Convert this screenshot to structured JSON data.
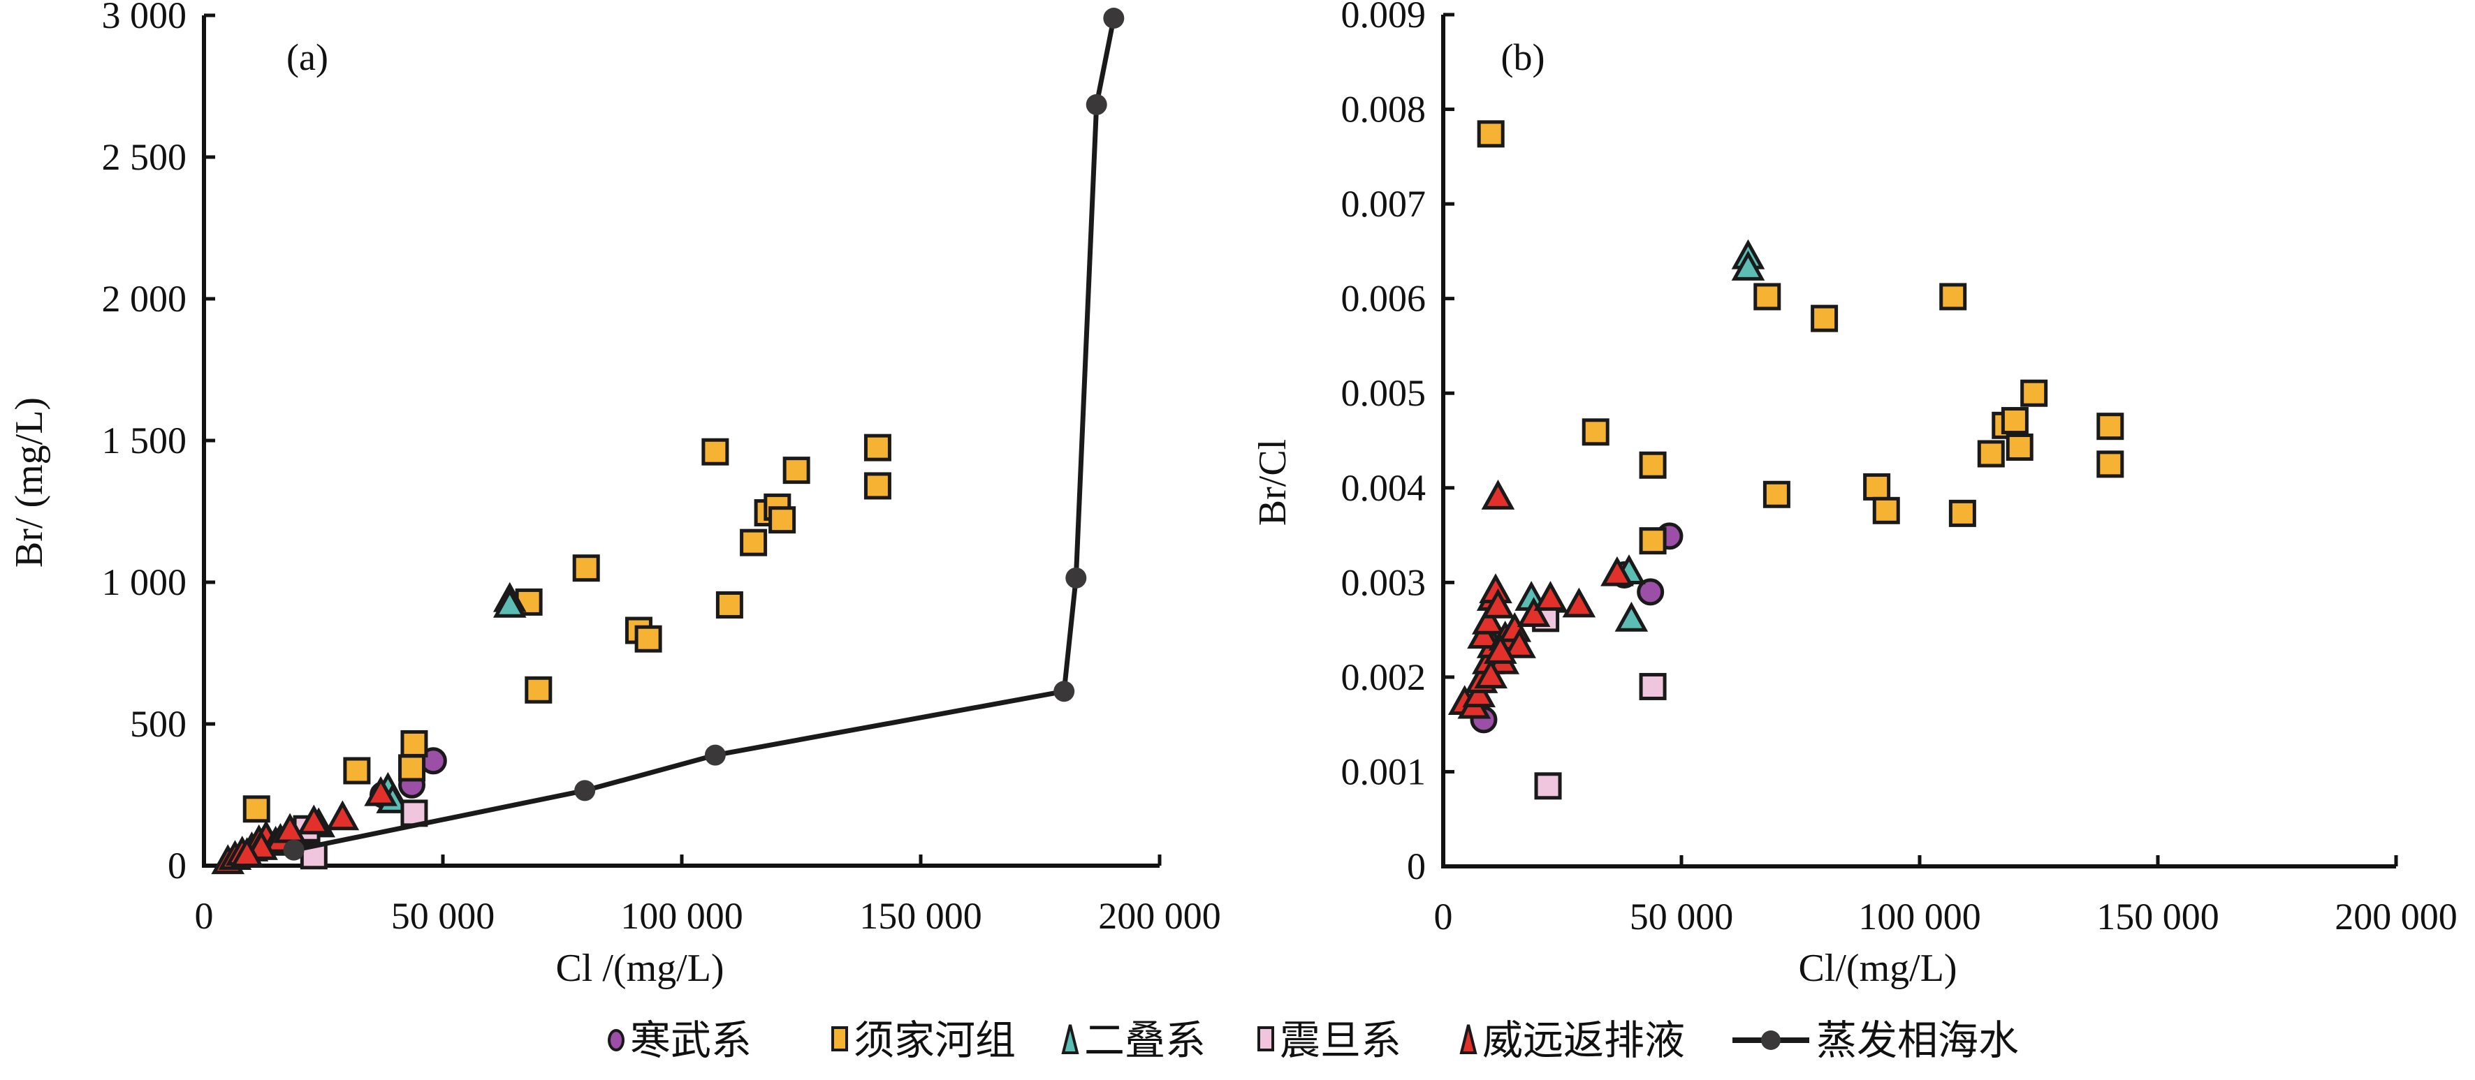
{
  "chart_data": [
    {
      "type": "scatter",
      "panel_label": "(a)",
      "xlabel": "Cl /(mg/L)",
      "ylabel": "Br/ (mg/L)",
      "xlim": [
        0,
        200000
      ],
      "ylim": [
        0,
        3000
      ],
      "xticks": [
        0,
        50000,
        100000,
        150000,
        200000
      ],
      "xtick_labels": [
        "0",
        "50 000",
        "100 000",
        "150 000",
        "200 000"
      ],
      "yticks": [
        0,
        500,
        1000,
        1500,
        2000,
        2500,
        3000
      ],
      "ytick_labels": [
        "0",
        "500",
        "1 000",
        "1 500",
        "2 000",
        "2 500",
        "3 000"
      ],
      "grid": false,
      "series": [
        {
          "name": "寒武系",
          "marker": "circle",
          "points": [
            [
              37500,
              250
            ],
            [
              43500,
              285
            ],
            [
              48000,
              370
            ]
          ]
        },
        {
          "name": "须家河组",
          "marker": "square",
          "points": [
            [
              11000,
              200
            ],
            [
              32000,
              335
            ],
            [
              44000,
              430
            ],
            [
              43500,
              345
            ],
            [
              68000,
              930
            ],
            [
              70000,
              620
            ],
            [
              80000,
              1050
            ],
            [
              91000,
              830
            ],
            [
              93000,
              800
            ],
            [
              107000,
              1460
            ],
            [
              110000,
              920
            ],
            [
              115000,
              1140
            ],
            [
              118000,
              1245
            ],
            [
              120000,
              1265
            ],
            [
              121000,
              1220
            ],
            [
              124000,
              1395
            ],
            [
              141000,
              1475
            ],
            [
              141000,
              1340
            ]
          ]
        },
        {
          "name": "二叠系",
          "marker": "triangle",
          "points": [
            [
              64000,
              935
            ],
            [
              64000,
              915
            ],
            [
              38500,
              265
            ],
            [
              39500,
              225
            ],
            [
              24000,
              140
            ]
          ]
        },
        {
          "name": "震旦系",
          "marker": "square",
          "points": [
            [
              23000,
              35
            ],
            [
              44000,
              185
            ],
            [
              21500,
              130
            ]
          ]
        },
        {
          "name": "威远返排液",
          "marker": "triangle",
          "points": [
            [
              5000,
              10
            ],
            [
              6500,
              25
            ],
            [
              8000,
              40
            ],
            [
              10000,
              55
            ],
            [
              11500,
              80
            ],
            [
              13000,
              95
            ],
            [
              15000,
              75
            ],
            [
              16000,
              85
            ],
            [
              18000,
              120
            ],
            [
              23000,
              150
            ],
            [
              29000,
              165
            ],
            [
              37000,
              250
            ],
            [
              12000,
              60
            ],
            [
              9000,
              35
            ]
          ]
        },
        {
          "name": "蒸发相海水",
          "marker": "line",
          "points": [
            [
              18800,
              55
            ],
            [
              79700,
              265
            ],
            [
              107000,
              390
            ],
            [
              180000,
              615
            ],
            [
              182500,
              1015
            ],
            [
              186800,
              2685
            ],
            [
              190400,
              2990
            ]
          ]
        }
      ]
    },
    {
      "type": "scatter",
      "panel_label": "(b)",
      "xlabel": "Cl/(mg/L)",
      "ylabel": "Br/Cl",
      "xlim": [
        0,
        200000
      ],
      "ylim": [
        0,
        0.009
      ],
      "xticks": [
        0,
        50000,
        100000,
        150000,
        200000
      ],
      "xtick_labels": [
        "0",
        "50 000",
        "100 000",
        "150 000",
        "200 000"
      ],
      "yticks": [
        0,
        0.001,
        0.002,
        0.003,
        0.004,
        0.005,
        0.006,
        0.007,
        0.008,
        0.009
      ],
      "ytick_labels": [
        "0",
        "0.001",
        "0.002",
        "0.003",
        "0.004",
        "0.005",
        "0.006",
        "0.007",
        "0.008",
        "0.009"
      ],
      "grid": false,
      "series": [
        {
          "name": "寒武系",
          "marker": "circle",
          "points": [
            [
              38000,
              0.00308
            ],
            [
              43500,
              0.0029
            ],
            [
              47500,
              0.00349
            ],
            [
              8500,
              0.00155
            ]
          ]
        },
        {
          "name": "须家河组",
          "marker": "square",
          "points": [
            [
              10000,
              0.00774
            ],
            [
              32000,
              0.00459
            ],
            [
              44000,
              0.00424
            ],
            [
              44000,
              0.00344
            ],
            [
              68000,
              0.00602
            ],
            [
              70000,
              0.00393
            ],
            [
              80000,
              0.00579
            ],
            [
              91000,
              0.00401
            ],
            [
              93000,
              0.00376
            ],
            [
              107000,
              0.00602
            ],
            [
              109000,
              0.00373
            ],
            [
              115000,
              0.00436
            ],
            [
              118000,
              0.00466
            ],
            [
              120000,
              0.00471
            ],
            [
              121000,
              0.00443
            ],
            [
              124000,
              0.005
            ],
            [
              140000,
              0.00465
            ],
            [
              140000,
              0.00425
            ]
          ]
        },
        {
          "name": "二叠系",
          "marker": "triangle",
          "points": [
            [
              64000,
              0.00643
            ],
            [
              64000,
              0.00631
            ],
            [
              39000,
              0.0031
            ],
            [
              39500,
              0.0026
            ],
            [
              18500,
              0.00282
            ],
            [
              22500,
              0.0028
            ]
          ]
        },
        {
          "name": "震旦系",
          "marker": "square",
          "points": [
            [
              22000,
              0.00085
            ],
            [
              44000,
              0.0019
            ],
            [
              21500,
              0.00262
            ]
          ]
        },
        {
          "name": "威远返排液",
          "marker": "triangle",
          "points": [
            [
              4500,
              0.00172
            ],
            [
              6500,
              0.00168
            ],
            [
              7500,
              0.0018
            ],
            [
              8000,
              0.00195
            ],
            [
              9500,
              0.00215
            ],
            [
              10500,
              0.00232
            ],
            [
              8500,
              0.00242
            ],
            [
              9500,
              0.00257
            ],
            [
              10500,
              0.00282
            ],
            [
              11000,
              0.0029
            ],
            [
              11500,
              0.00274
            ],
            [
              12500,
              0.00215
            ],
            [
              13000,
              0.0024
            ],
            [
              15000,
              0.00249
            ],
            [
              16000,
              0.00232
            ],
            [
              19000,
              0.00265
            ],
            [
              22500,
              0.00282
            ],
            [
              28500,
              0.00275
            ],
            [
              36500,
              0.00308
            ],
            [
              11500,
              0.00389
            ],
            [
              10000,
              0.002
            ],
            [
              12000,
              0.00226
            ]
          ]
        }
      ]
    }
  ],
  "legend": {
    "placement": "bottom-center",
    "items": [
      {
        "label": "寒武系",
        "marker": "circle",
        "color": "#9b4fa6"
      },
      {
        "label": "须家河组",
        "marker": "square",
        "color": "#f5b233"
      },
      {
        "label": "二叠系",
        "marker": "triangle",
        "color": "#5bbdb4"
      },
      {
        "label": "震旦系",
        "marker": "square",
        "color": "#f0c6df"
      },
      {
        "label": "威远返排液",
        "marker": "triangle",
        "color": "#e2302a"
      },
      {
        "label": "蒸发相海水",
        "marker": "line-dot",
        "color": "#3a3838"
      }
    ]
  }
}
